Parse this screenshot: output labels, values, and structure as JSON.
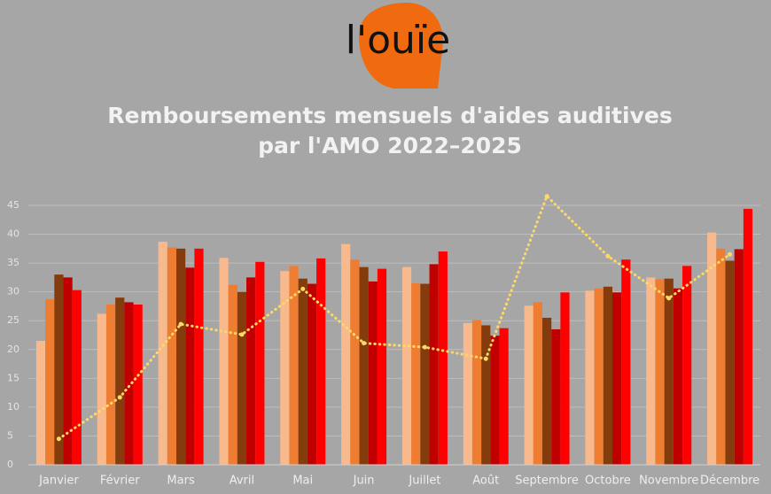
{
  "logo": "l'ouïe",
  "chart_data": {
    "type": "bar",
    "title": [
      "Remboursements mensuels d'aides auditives",
      "par l'AMO 2022–2025"
    ],
    "categories": [
      "Janvier",
      "Février",
      "Mars",
      "Avril",
      "Mai",
      "Juin",
      "Juillet",
      "Août",
      "Septembre",
      "Octobre",
      "Novembre",
      "Décembre"
    ],
    "series": [
      {
        "color": "#f8b98c",
        "values": [
          21.5,
          26.2,
          38.7,
          35.9,
          33.6,
          38.3,
          34.3,
          24.6,
          27.6,
          30.2,
          32.5,
          40.3
        ]
      },
      {
        "color": "#ee7d31",
        "values": [
          28.7,
          27.8,
          37.7,
          31.2,
          34.5,
          35.6,
          31.5,
          25.1,
          28.2,
          30.6,
          32.2,
          37.5
        ]
      },
      {
        "color": "#843c0c",
        "values": [
          33.0,
          29.0,
          37.5,
          30.0,
          32.3,
          34.3,
          31.4,
          24.2,
          25.5,
          30.9,
          32.3,
          35.4
        ]
      },
      {
        "color": "#c00000",
        "values": [
          32.5,
          28.2,
          34.2,
          32.5,
          31.4,
          31.8,
          34.8,
          22.4,
          23.5,
          29.9,
          30.6,
          37.4
        ]
      },
      {
        "color": "#ff0000",
        "values": [
          30.3,
          27.8,
          37.5,
          35.2,
          35.8,
          34.0,
          37.0,
          23.7,
          29.9,
          35.6,
          34.5,
          44.4
        ]
      },
      {
        "type": "line",
        "color": "#ffd966",
        "values": [
          4.5,
          11.7,
          24.4,
          22.6,
          30.5,
          21.1,
          20.4,
          18.4,
          46.6,
          36.2,
          28.9,
          36.5
        ]
      }
    ],
    "ylim": [
      0,
      45
    ],
    "yticks": [
      0,
      5,
      10,
      15,
      20,
      25,
      30,
      35,
      40,
      45
    ],
    "grid": true
  }
}
